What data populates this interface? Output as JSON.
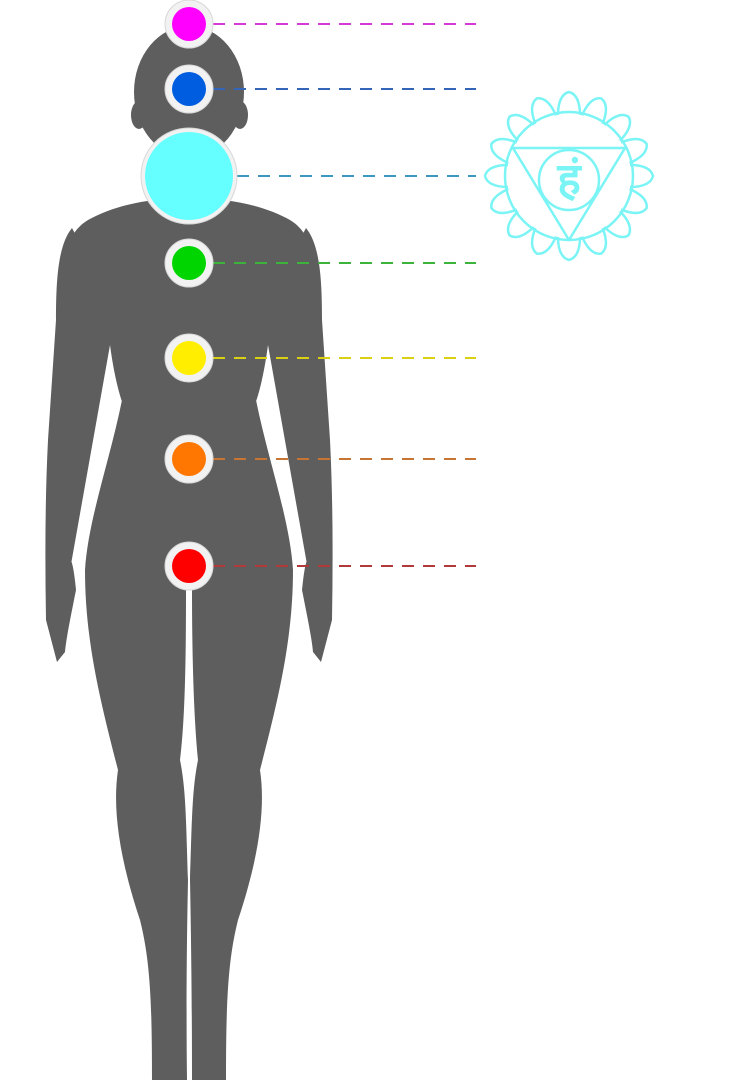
{
  "diagram": {
    "body_color": "#5e5e5e",
    "ring_color": "#f2f2f2",
    "highlighted_chakra": "throat",
    "chakras": [
      {
        "name": "crown",
        "color": "#ff00ff",
        "line_color": "#d63ad6"
      },
      {
        "name": "third-eye",
        "color": "#005de0",
        "line_color": "#3565b8"
      },
      {
        "name": "throat",
        "color": "#66ffff",
        "line_color": "#3d98c0"
      },
      {
        "name": "heart",
        "color": "#00d500",
        "line_color": "#3cb43c"
      },
      {
        "name": "solar-plexus",
        "color": "#ffee00",
        "line_color": "#d8d010"
      },
      {
        "name": "sacral",
        "color": "#ff7700",
        "line_color": "#c87534"
      },
      {
        "name": "root",
        "color": "#ff0000",
        "line_color": "#b03a3a"
      }
    ],
    "symbol": {
      "name": "vishuddha-throat-chakra-symbol",
      "color": "#7af4f4",
      "petal_count": 16,
      "seed_syllable": "हं"
    }
  }
}
